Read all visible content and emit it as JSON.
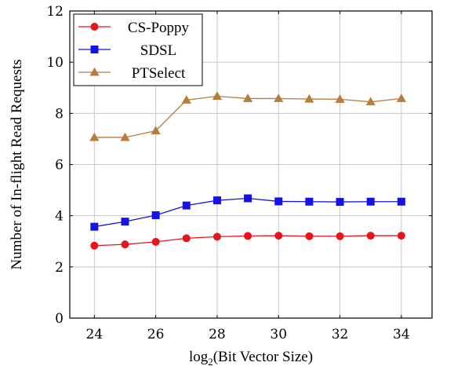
{
  "chart_data": {
    "type": "line",
    "xlabel_prefix": "log",
    "xlabel_sub": "2",
    "xlabel_rest": "(Bit Vector Size)",
    "ylabel": "Number of In-flight Read Requests",
    "xlim": [
      23.2,
      35.0
    ],
    "ylim": [
      0,
      12
    ],
    "xticks": [
      24,
      26,
      28,
      30,
      32,
      34
    ],
    "yticks": [
      0,
      2,
      4,
      6,
      8,
      10,
      12
    ],
    "grid": true,
    "legend_position": "top-left",
    "x": [
      24,
      25,
      26,
      27,
      28,
      29,
      30,
      31,
      32,
      33,
      34
    ],
    "series": [
      {
        "name": "CS-Poppy",
        "color": "#e8141b",
        "marker": "circle",
        "values": [
          2.83,
          2.88,
          2.98,
          3.12,
          3.18,
          3.21,
          3.22,
          3.2,
          3.2,
          3.22,
          3.22
        ]
      },
      {
        "name": "SDSL",
        "color": "#1512e6",
        "marker": "square",
        "values": [
          3.57,
          3.77,
          4.02,
          4.4,
          4.6,
          4.68,
          4.56,
          4.55,
          4.54,
          4.55,
          4.55
        ]
      },
      {
        "name": "PTSelect",
        "color": "#b87d3c",
        "marker": "triangle",
        "values": [
          7.06,
          7.06,
          7.32,
          8.52,
          8.67,
          8.58,
          8.58,
          8.56,
          8.55,
          8.45,
          8.58
        ]
      }
    ]
  }
}
